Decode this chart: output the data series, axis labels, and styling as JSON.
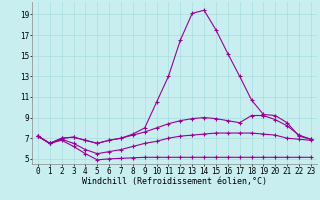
{
  "xlabel": "Windchill (Refroidissement éolien,°C)",
  "background_color": "#c8eef0",
  "grid_color": "#aadddf",
  "line_color": "#990099",
  "x_values": [
    0,
    1,
    2,
    3,
    4,
    5,
    6,
    7,
    8,
    9,
    10,
    11,
    12,
    13,
    14,
    15,
    16,
    17,
    18,
    19,
    20,
    21,
    22,
    23
  ],
  "line1": [
    7.2,
    6.5,
    6.8,
    6.2,
    5.5,
    4.9,
    5.0,
    5.05,
    5.1,
    5.15,
    5.15,
    5.15,
    5.15,
    5.15,
    5.15,
    5.15,
    5.15,
    5.15,
    5.15,
    5.15,
    5.15,
    5.15,
    5.15,
    5.15
  ],
  "line2": [
    7.2,
    6.5,
    6.9,
    6.5,
    5.9,
    5.5,
    5.7,
    5.9,
    6.2,
    6.5,
    6.7,
    7.0,
    7.2,
    7.3,
    7.4,
    7.5,
    7.5,
    7.5,
    7.5,
    7.4,
    7.3,
    7.0,
    6.9,
    6.8
  ],
  "line3": [
    7.2,
    6.5,
    7.0,
    7.1,
    6.8,
    6.5,
    6.8,
    7.0,
    7.3,
    7.6,
    8.0,
    8.4,
    8.7,
    8.9,
    9.0,
    8.9,
    8.7,
    8.5,
    9.2,
    9.2,
    8.8,
    8.2,
    7.3,
    6.9
  ],
  "line4": [
    7.2,
    6.5,
    7.0,
    7.1,
    6.8,
    6.5,
    6.8,
    7.0,
    7.4,
    8.0,
    10.5,
    13.0,
    16.5,
    19.1,
    19.4,
    17.5,
    15.2,
    13.0,
    10.7,
    9.3,
    9.2,
    8.5,
    7.2,
    6.9
  ],
  "ylim": [
    4.5,
    20.2
  ],
  "xlim_min": -0.5,
  "xlim_max": 23.5,
  "yticks": [
    5,
    7,
    9,
    11,
    13,
    15,
    17,
    19
  ],
  "xticks": [
    0,
    1,
    2,
    3,
    4,
    5,
    6,
    7,
    8,
    9,
    10,
    11,
    12,
    13,
    14,
    15,
    16,
    17,
    18,
    19,
    20,
    21,
    22,
    23
  ],
  "font_family": "monospace",
  "xlabel_fontsize": 6,
  "tick_fontsize": 5.5
}
